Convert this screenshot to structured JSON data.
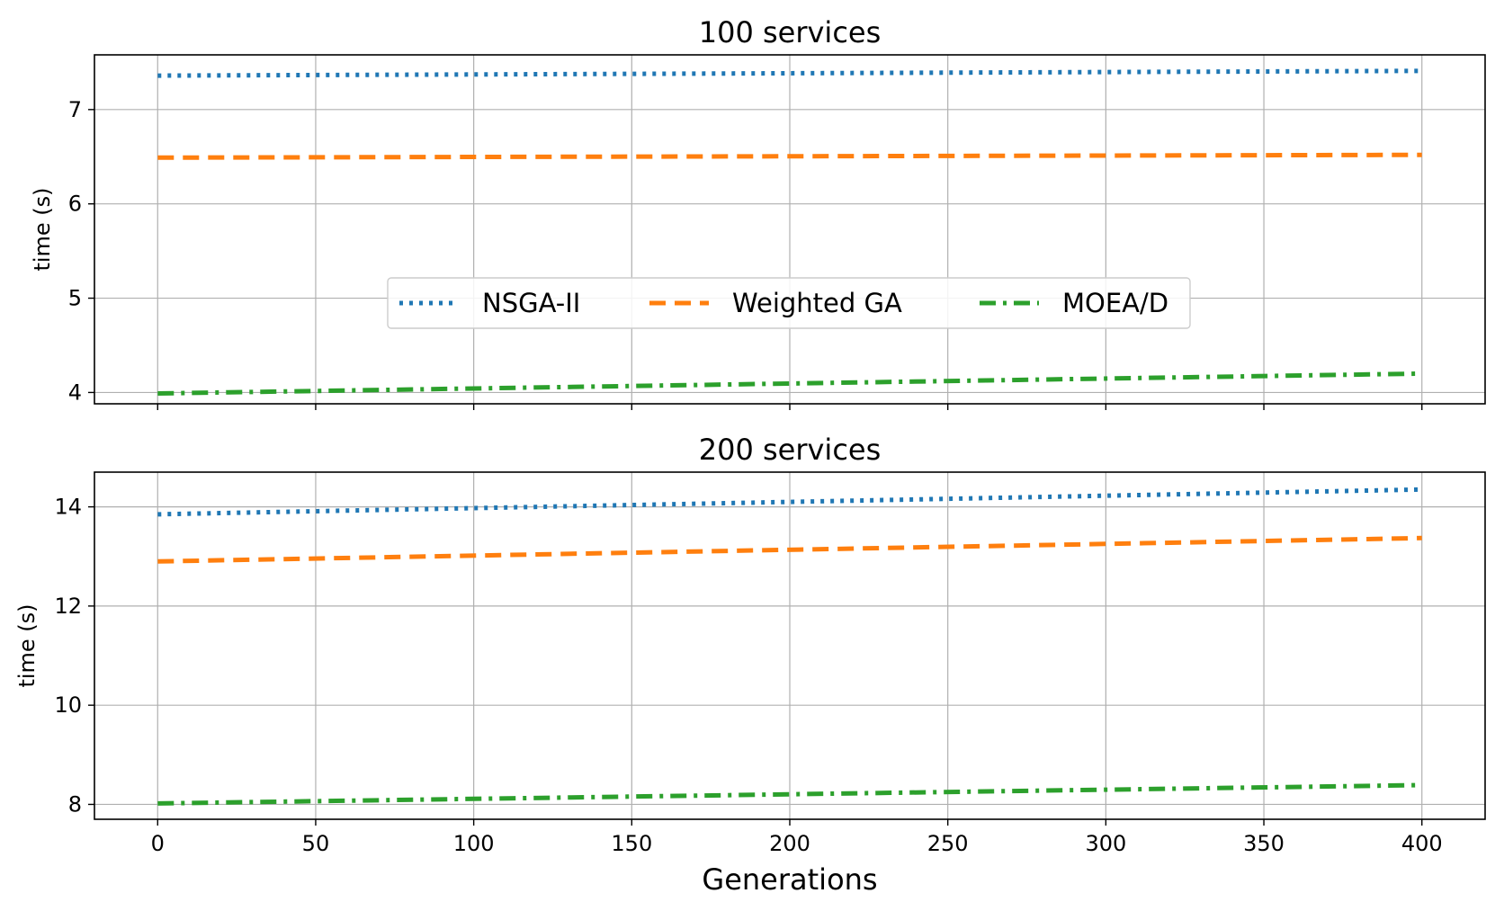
{
  "chart_data": [
    {
      "type": "line",
      "title": "100 services",
      "xlabel": "",
      "ylabel": "time (s)",
      "xlim": [
        -20,
        420
      ],
      "ylim": [
        3.88,
        7.58
      ],
      "xticks": [
        0,
        50,
        100,
        150,
        200,
        250,
        300,
        350,
        400
      ],
      "xtick_labels_visible": false,
      "yticks": [
        4,
        5,
        6,
        7
      ],
      "ytick_labels": [
        "4",
        "5",
        "6",
        "7"
      ],
      "grid": true,
      "legend": {
        "placement": "center",
        "entries": [
          {
            "label": "NSGA-II",
            "style": "dotted",
            "color": "#1f77b4"
          },
          {
            "label": "Weighted GA",
            "style": "dashed",
            "color": "#ff7f0e"
          },
          {
            "label": "MOEA/D",
            "style": "dashdot",
            "color": "#2ca02c"
          }
        ]
      },
      "series": [
        {
          "name": "NSGA-II",
          "color": "#1f77b4",
          "style": "dotted",
          "x": [
            0,
            400
          ],
          "y": [
            7.36,
            7.41
          ]
        },
        {
          "name": "Weighted GA",
          "color": "#ff7f0e",
          "style": "dashed",
          "x": [
            0,
            400
          ],
          "y": [
            6.49,
            6.52
          ]
        },
        {
          "name": "MOEA/D",
          "color": "#2ca02c",
          "style": "dashdot",
          "x": [
            0,
            400
          ],
          "y": [
            3.99,
            4.2
          ]
        }
      ]
    },
    {
      "type": "line",
      "title": "200 services",
      "xlabel": "Generations",
      "ylabel": "time (s)",
      "xlim": [
        -20,
        420
      ],
      "ylim": [
        7.7,
        14.7
      ],
      "xticks": [
        0,
        50,
        100,
        150,
        200,
        250,
        300,
        350,
        400
      ],
      "xtick_labels": [
        "0",
        "50",
        "100",
        "150",
        "200",
        "250",
        "300",
        "350",
        "400"
      ],
      "xtick_labels_visible": true,
      "yticks": [
        8,
        10,
        12,
        14
      ],
      "ytick_labels": [
        "8",
        "10",
        "12",
        "14"
      ],
      "grid": true,
      "series": [
        {
          "name": "NSGA-II",
          "color": "#1f77b4",
          "style": "dotted",
          "x": [
            0,
            400
          ],
          "y": [
            13.85,
            14.35
          ]
        },
        {
          "name": "Weighted GA",
          "color": "#ff7f0e",
          "style": "dashed",
          "x": [
            0,
            400
          ],
          "y": [
            12.9,
            13.37
          ]
        },
        {
          "name": "MOEA/D",
          "color": "#2ca02c",
          "style": "dashdot",
          "x": [
            0,
            400
          ],
          "y": [
            8.02,
            8.39
          ]
        }
      ]
    }
  ]
}
